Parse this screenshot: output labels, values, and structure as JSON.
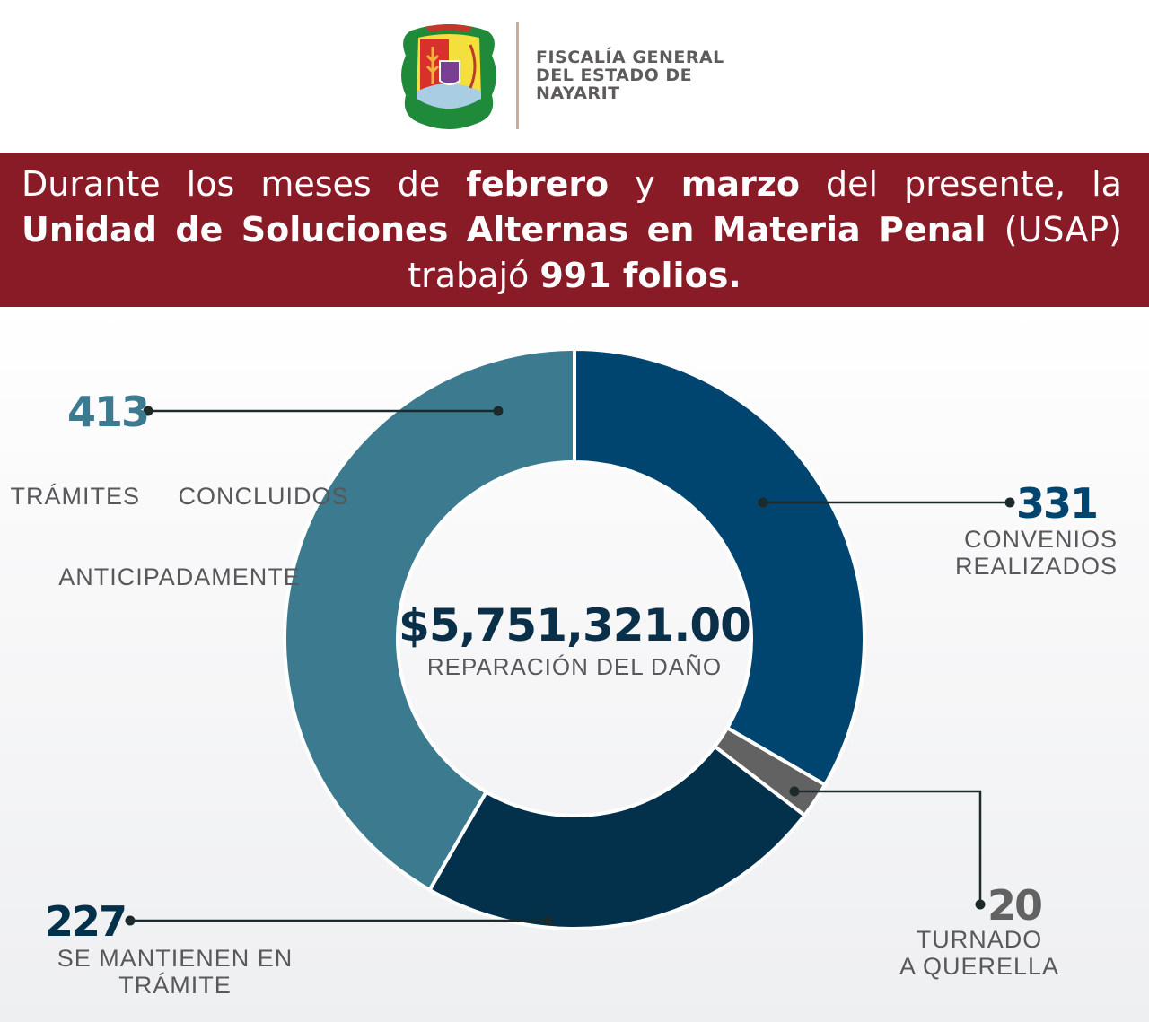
{
  "header": {
    "org_lines": [
      "FISCALÍA GENERAL",
      "DEL ESTADO DE",
      "NAYARIT"
    ],
    "logo_icon": "nayarit-coat-of-arms"
  },
  "banner": {
    "line1": [
      "Durante",
      "los",
      "meses",
      "de",
      "febrero",
      "y",
      "marzo",
      "del",
      "presente,",
      "la"
    ],
    "line2": [
      "Unidad",
      "de",
      "Soluciones",
      "Alternas",
      "en",
      "Materia",
      "Penal",
      "(USAP)"
    ],
    "line3_a": "trabajó ",
    "line3_b": "991 folios.",
    "color": "#891b27"
  },
  "chart_data": {
    "type": "pie",
    "donut": true,
    "total": 991,
    "center_value": "$5,751,321.00",
    "center_label": "REPARACIÓN DEL DAÑO",
    "slices": [
      {
        "value": 331,
        "label_lines": [
          "CONVENIOS",
          "REALIZADOS"
        ],
        "color": "#00456f",
        "value_color": "#00456f"
      },
      {
        "value": 20,
        "label_lines": [
          "TURNADO",
          "A QUERELLA"
        ],
        "color": "#626262",
        "value_color": "#626262"
      },
      {
        "value": 227,
        "label_lines": [
          "SE MANTIENEN EN",
          "TRÁMITE"
        ],
        "color": "#03304a",
        "value_color": "#03304a"
      },
      {
        "value": 413,
        "label_lines": [
          "TRÁMITES     CONCLUIDOS",
          "ANTICIPADAMENTE"
        ],
        "color": "#3c7b8f",
        "value_color": "#3c7b8f"
      }
    ]
  }
}
